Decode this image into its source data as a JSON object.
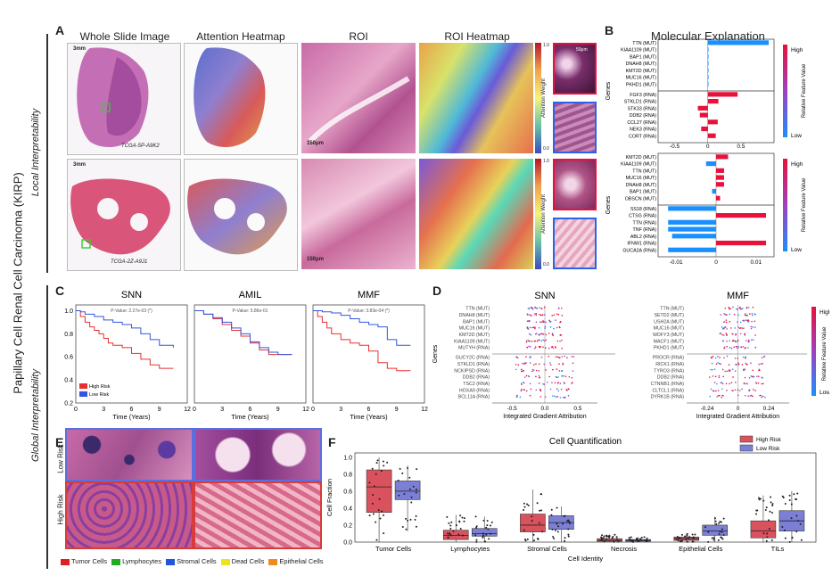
{
  "left_title": "Papillary Cell Renal Cell Carcinoma (KIRP)",
  "local_label": "Local Interpretability",
  "global_label": "Global Interpretability",
  "panel_labels": {
    "A": "A",
    "B": "B",
    "C": "C",
    "D": "D",
    "E": "E",
    "F": "F"
  },
  "panelA": {
    "columns": [
      "Whole Slide Image",
      "Attention Heatmap",
      "ROI",
      "ROI Heatmap"
    ],
    "slide1": "TCGA-5P-A9K2",
    "slide2": "TCGA-2Z-A9J1",
    "scale_wsi": "3mm",
    "scale_roi": "150μm",
    "scale_patch": "50μm",
    "colorbar_label": "Attention Weight",
    "colorbar_ticks": [
      "1.0",
      "0.0"
    ]
  },
  "panelB": {
    "title": "Molecular Explanation",
    "ylabel": "Genes",
    "legend_label": "Relative Feature Value",
    "high": "High",
    "low": "Low"
  },
  "panelC": {
    "ylabel_ticks": [
      "1.0",
      "0.8",
      "0.6",
      "0.4",
      "0.2"
    ],
    "xlabel": "Time (Years)",
    "legend": [
      "High Risk",
      "Low Risk"
    ]
  },
  "panelD": {
    "ylabel": "Genes",
    "xlabel": "Integrated Gradient Attribution",
    "legend_label": "Relative Feature Value",
    "high": "High",
    "low": "Low"
  },
  "panelE": {
    "low_risk": "Low Risk",
    "high_risk": "High Risk",
    "legend": [
      {
        "label": "Tumor Cells",
        "color": "#e02020"
      },
      {
        "label": "Lymphocytes",
        "color": "#22aa22"
      },
      {
        "label": "Stromal Cells",
        "color": "#2255dd"
      },
      {
        "label": "Dead Cells",
        "color": "#f0e020"
      },
      {
        "label": "Epithelial Cells",
        "color": "#f08a20"
      }
    ]
  },
  "chart_data": [
    {
      "id": "B_top",
      "type": "bar",
      "orientation": "horizontal",
      "categories": [
        "TTN (MUT)",
        "KIAA1109 (MUT)",
        "BAP1 (MUT)",
        "DNAH8 (MUT)",
        "KMT2D (MUT)",
        "MUC16 (MUT)",
        "PKHD1 (MUT)",
        "FGF3 (RNA)",
        "STKLD1 (RNA)",
        "STK33 (RNA)",
        "DDB2 (RNA)",
        "CCL27 (RNA)",
        "NEK3 (RNA)",
        "CORT (RNA)"
      ],
      "values": [
        0.92,
        0.01,
        0.01,
        0.01,
        0.01,
        0.01,
        0.01,
        0.45,
        0.16,
        -0.15,
        -0.12,
        0.15,
        -0.1,
        0.12
      ],
      "xlim": [
        -0.75,
        1.0
      ],
      "xticks": [
        "-0.5",
        "0",
        "0.5"
      ]
    },
    {
      "id": "B_bottom",
      "type": "bar",
      "orientation": "horizontal",
      "categories": [
        "KMT2D (MUT)",
        "KIAA1109 (MUT)",
        "TTN (MUT)",
        "MUC16 (MUT)",
        "DNAH8 (MUT)",
        "BAP1 (MUT)",
        "OBSCN (MUT)",
        "SS18 (RNA)",
        "CTSG (RNA)",
        "TTN (RNA)",
        "TNF (RNA)",
        "ABL2 (RNA)",
        "IFNW1 (RNA)",
        "GUCA2A (RNA)"
      ],
      "values": [
        0.003,
        -0.0025,
        0.002,
        0.002,
        0.002,
        -0.001,
        0.001,
        -0.012,
        0.0125,
        -0.012,
        -0.012,
        -0.011,
        0.0125,
        -0.012
      ],
      "xlim": [
        -0.0145,
        0.0145
      ],
      "xticks": [
        "-0.01",
        "0",
        "0.01"
      ]
    },
    {
      "id": "C_SNN",
      "type": "line",
      "title": "SNN",
      "pvalue": "P-Value: 2.27e-03 (*)",
      "xlabel": "Time (Years)",
      "xlim": [
        0,
        12
      ],
      "ylim": [
        0.2,
        1.05
      ],
      "xticks": [
        "0",
        "3",
        "6",
        "9",
        "12"
      ],
      "series": [
        {
          "name": "High Risk",
          "x": [
            0,
            0.5,
            1,
            1.5,
            2,
            2.5,
            3,
            3.5,
            4,
            5,
            6,
            7,
            8,
            9,
            10.5
          ],
          "y": [
            1,
            0.95,
            0.9,
            0.86,
            0.83,
            0.8,
            0.76,
            0.72,
            0.7,
            0.68,
            0.63,
            0.58,
            0.53,
            0.5,
            0.5
          ]
        },
        {
          "name": "Low Risk",
          "x": [
            0,
            0.5,
            1,
            2,
            3,
            4,
            5,
            6,
            7,
            8,
            9,
            10.5
          ],
          "y": [
            1,
            0.99,
            0.97,
            0.95,
            0.92,
            0.9,
            0.88,
            0.85,
            0.8,
            0.75,
            0.7,
            0.68
          ]
        }
      ]
    },
    {
      "id": "C_AMIL",
      "type": "line",
      "title": "AMIL",
      "pvalue": "P-Value: 5.86e-01",
      "xlabel": "Time (Years)",
      "xlim": [
        0,
        12
      ],
      "ylim": [
        0.2,
        1.05
      ],
      "xticks": [
        "0",
        "3",
        "6",
        "9",
        "12"
      ],
      "series": [
        {
          "name": "High Risk",
          "x": [
            0,
            1,
            2,
            3,
            4,
            5,
            6,
            7,
            8,
            9,
            10.5
          ],
          "y": [
            1,
            0.97,
            0.93,
            0.88,
            0.83,
            0.78,
            0.72,
            0.66,
            0.62,
            0.62,
            0.62
          ]
        },
        {
          "name": "Low Risk",
          "x": [
            0,
            1,
            2,
            3,
            4,
            5,
            6,
            7,
            8,
            9,
            10.5
          ],
          "y": [
            1,
            0.97,
            0.94,
            0.9,
            0.85,
            0.8,
            0.73,
            0.68,
            0.64,
            0.62,
            0.62
          ]
        }
      ]
    },
    {
      "id": "C_MMF",
      "type": "line",
      "title": "MMF",
      "pvalue": "P-Value: 3.83e-04 (*)",
      "xlabel": "Time (Years)",
      "xlim": [
        0,
        12
      ],
      "ylim": [
        0.2,
        1.05
      ],
      "xticks": [
        "0",
        "3",
        "6",
        "9",
        "12"
      ],
      "series": [
        {
          "name": "High Risk",
          "x": [
            0,
            0.5,
            1,
            1.5,
            2,
            3,
            4,
            5,
            6,
            7,
            8,
            9,
            10.5
          ],
          "y": [
            1,
            0.95,
            0.9,
            0.85,
            0.8,
            0.75,
            0.72,
            0.7,
            0.65,
            0.55,
            0.5,
            0.48,
            0.48
          ]
        },
        {
          "name": "Low Risk",
          "x": [
            0,
            1,
            2,
            3,
            4,
            5,
            6,
            7,
            8,
            9,
            10.5
          ],
          "y": [
            1,
            0.99,
            0.98,
            0.96,
            0.93,
            0.9,
            0.88,
            0.86,
            0.75,
            0.7,
            0.7
          ]
        }
      ]
    },
    {
      "id": "D_SNN",
      "type": "scatter",
      "title": "SNN",
      "categories": [
        "TTN (MUT)",
        "DNAH8 (MUT)",
        "BAP1 (MUT)",
        "MUC16 (MUT)",
        "KMT2D (MUT)",
        "KIAA1109 (MUT)",
        "MUTYH (RNA)",
        "GUCY2C (RNA)",
        "STKLD1 (RNA)",
        "NCKIPSD (RNA)",
        "DDB2 (RNA)",
        "TSC2 (RNA)",
        "HOXA9 (RNA)",
        "BCL11A (RNA)"
      ],
      "xlim": [
        -0.8,
        0.8
      ],
      "xticks": [
        "-0.5",
        "0.0",
        "0.5"
      ],
      "xlabel": "Integrated Gradient Attribution"
    },
    {
      "id": "D_MMF",
      "type": "scatter",
      "title": "MMF",
      "categories": [
        "TTN (MUT)",
        "SETD2 (MUT)",
        "USH2A (MUT)",
        "MUC16 (MUT)",
        "WDFY3 (MUT)",
        "MACF1 (MUT)",
        "PKHD1 (MUT)",
        "PROCR (RNA)",
        "RICK1 (RNA)",
        "TYRO3 (RNA)",
        "DDB2 (RNA)",
        "CTNNB1 (RNA)",
        "CLTCL1 (RNA)",
        "DYRK1B (RNA)"
      ],
      "xlim": [
        -0.4,
        0.4
      ],
      "xticks": [
        "-0.24",
        "0",
        "0.24"
      ],
      "xlabel": "Integrated Gradient Attribution"
    },
    {
      "id": "F",
      "type": "box",
      "title": "Cell Quantification",
      "xlabel": "Cell Identity",
      "ylabel": "Cell Fraction",
      "ylim": [
        0,
        1.05
      ],
      "yticks": [
        "0.0",
        "0.2",
        "0.4",
        "0.6",
        "0.8",
        "1.0"
      ],
      "categories": [
        "Tumor Cells",
        "Lymphocytes",
        "Stromal Cells",
        "Necrosis",
        "Epithelial Cells",
        "TILs"
      ],
      "series": [
        {
          "name": "High Risk",
          "color": "#d9525e",
          "q1": [
            0.35,
            0.03,
            0.12,
            0.01,
            0.02,
            0.05
          ],
          "median": [
            0.65,
            0.08,
            0.2,
            0.02,
            0.04,
            0.13
          ],
          "q3": [
            0.85,
            0.14,
            0.33,
            0.04,
            0.06,
            0.25
          ],
          "whislo": [
            0.0,
            0.0,
            0.0,
            0.0,
            0.0,
            0.0
          ],
          "whishi": [
            1.0,
            0.32,
            0.62,
            0.09,
            0.1,
            0.55
          ]
        },
        {
          "name": "Low Risk",
          "color": "#7b7fd6",
          "q1": [
            0.5,
            0.07,
            0.15,
            0.01,
            0.08,
            0.13
          ],
          "median": [
            0.6,
            0.1,
            0.23,
            0.02,
            0.13,
            0.25
          ],
          "q3": [
            0.72,
            0.16,
            0.31,
            0.03,
            0.2,
            0.37
          ],
          "whislo": [
            0.13,
            0.0,
            0.0,
            0.0,
            0.0,
            0.0
          ],
          "whishi": [
            0.9,
            0.3,
            0.42,
            0.06,
            0.3,
            0.6
          ]
        }
      ]
    }
  ],
  "colors": {
    "high": "#e8113b",
    "low": "#1a8fff",
    "accent_green": "#33cc33"
  }
}
